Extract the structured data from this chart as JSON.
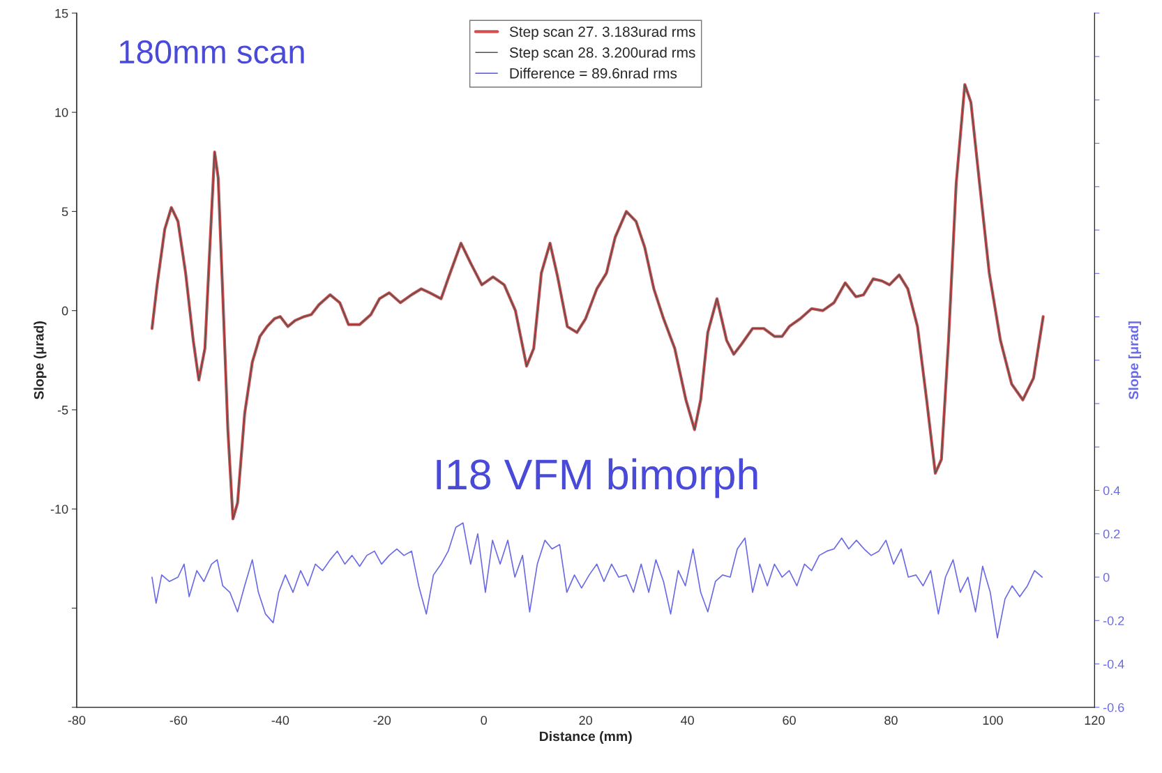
{
  "chart_data": {
    "type": "line",
    "xlabel": "Distance (mm)",
    "ylabel": "Slope (μrad)",
    "y2label": "Slope [μrad]",
    "annotations": [
      "180mm scan",
      "I18 VFM bimorph"
    ],
    "xlim": [
      -80,
      120
    ],
    "xticks": [
      -80,
      -60,
      -40,
      -20,
      0,
      20,
      40,
      60,
      80,
      100,
      120
    ],
    "ylim": [
      -20,
      15
    ],
    "yticks": [
      {
        "value": -20,
        "label": null
      },
      {
        "value": -15,
        "label": null
      },
      -10,
      -5,
      0,
      5,
      10,
      15
    ],
    "y2lim": [
      -0.6,
      2.6
    ],
    "y2ticks": [
      -0.6,
      -0.4,
      -0.2,
      0,
      0.2,
      0.4,
      {
        "value": 0.6,
        "label": null
      },
      {
        "value": 0.8,
        "label": null
      },
      {
        "value": 1.0,
        "label": null
      },
      {
        "value": 1.2,
        "label": null
      },
      {
        "value": 1.4,
        "label": null
      },
      {
        "value": 1.6,
        "label": null
      },
      {
        "value": 1.8,
        "label": null
      },
      {
        "value": 2.0,
        "label": null
      },
      {
        "value": 2.2,
        "label": null
      },
      {
        "value": 2.4,
        "label": null
      },
      {
        "value": 2.6,
        "label": null
      }
    ],
    "legend": "top",
    "grid": false,
    "series": [
      {
        "name": "Step scan 27. 3.183urad rms",
        "color": "#d05050",
        "x": [
          -65.2,
          -64.2,
          -62.7,
          -61.4,
          -60.1,
          -58.6,
          -57.1,
          -56.0,
          -54.8,
          -53.8,
          -52.9,
          -52.2,
          -51.3,
          -50.3,
          -49.3,
          -48.4,
          -47.0,
          -45.5,
          -44.0,
          -42.6,
          -41.1,
          -40.0,
          -38.5,
          -37.1,
          -35.3,
          -33.9,
          -32.4,
          -30.2,
          -28.3,
          -26.6,
          -24.4,
          -22.2,
          -20.5,
          -18.6,
          -16.4,
          -14.2,
          -12.3,
          -10.6,
          -8.4,
          -6.9,
          -4.5,
          -2.6,
          -0.4,
          1.8,
          4.0,
          6.2,
          8.4,
          9.8,
          11.3,
          13.0,
          14.5,
          16.4,
          18.3,
          20.0,
          22.2,
          24.1,
          25.8,
          28.0,
          29.9,
          31.6,
          33.4,
          35.3,
          37.5,
          39.7,
          41.4,
          42.6,
          44.0,
          45.8,
          47.7,
          49.1,
          50.6,
          52.8,
          55.0,
          57.1,
          58.6,
          60.0,
          62.2,
          64.4,
          66.6,
          68.8,
          71.0,
          73.1,
          74.6,
          76.5,
          78.2,
          79.7,
          81.6,
          83.3,
          85.2,
          87.0,
          88.7,
          89.9,
          91.3,
          92.8,
          94.5,
          95.7,
          97.4,
          99.3,
          101.5,
          103.7,
          105.9,
          108.0,
          109.9
        ],
        "values": [
          -0.9,
          1.3,
          4.1,
          5.2,
          4.5,
          1.9,
          -1.5,
          -3.5,
          -1.9,
          3.4,
          8.0,
          6.7,
          0.8,
          -6.0,
          -10.5,
          -9.7,
          -5.2,
          -2.6,
          -1.3,
          -0.8,
          -0.4,
          -0.3,
          -0.8,
          -0.5,
          -0.3,
          -0.2,
          0.3,
          0.8,
          0.4,
          -0.7,
          -0.7,
          -0.2,
          0.6,
          0.9,
          0.4,
          0.8,
          1.1,
          0.9,
          0.6,
          1.7,
          3.4,
          2.4,
          1.3,
          1.7,
          1.3,
          0.0,
          -2.8,
          -1.9,
          1.9,
          3.4,
          1.7,
          -0.8,
          -1.1,
          -0.4,
          1.1,
          1.9,
          3.7,
          5.0,
          4.5,
          3.2,
          1.1,
          -0.4,
          -1.9,
          -4.5,
          -6.0,
          -4.5,
          -1.1,
          0.6,
          -1.5,
          -2.2,
          -1.7,
          -0.9,
          -0.9,
          -1.3,
          -1.3,
          -0.8,
          -0.4,
          0.1,
          0.0,
          0.4,
          1.4,
          0.7,
          0.8,
          1.6,
          1.5,
          1.3,
          1.8,
          1.1,
          -0.8,
          -4.5,
          -8.2,
          -7.5,
          -1.5,
          6.4,
          11.4,
          10.5,
          6.4,
          1.9,
          -1.5,
          -3.7,
          -4.5,
          -3.4,
          -0.3
        ]
      },
      {
        "name": "Step scan 28. 3.200urad rms",
        "color": "#505050",
        "x": [
          -65.2,
          -64.2,
          -62.7,
          -61.4,
          -60.1,
          -58.6,
          -57.1,
          -56.0,
          -54.8,
          -53.8,
          -52.9,
          -52.2,
          -51.3,
          -50.3,
          -49.3,
          -48.4,
          -47.0,
          -45.5,
          -44.0,
          -42.6,
          -41.1,
          -40.0,
          -38.5,
          -37.1,
          -35.3,
          -33.9,
          -32.4,
          -30.2,
          -28.3,
          -26.6,
          -24.4,
          -22.2,
          -20.5,
          -18.6,
          -16.4,
          -14.2,
          -12.3,
          -10.6,
          -8.4,
          -6.9,
          -4.5,
          -2.6,
          -0.4,
          1.8,
          4.0,
          6.2,
          8.4,
          9.8,
          11.3,
          13.0,
          14.5,
          16.4,
          18.3,
          20.0,
          22.2,
          24.1,
          25.8,
          28.0,
          29.9,
          31.6,
          33.4,
          35.3,
          37.5,
          39.7,
          41.4,
          42.6,
          44.0,
          45.8,
          47.7,
          49.1,
          50.6,
          52.8,
          55.0,
          57.1,
          58.6,
          60.0,
          62.2,
          64.4,
          66.6,
          68.8,
          71.0,
          73.1,
          74.6,
          76.5,
          78.2,
          79.7,
          81.6,
          83.3,
          85.2,
          87.0,
          88.7,
          89.9,
          91.3,
          92.8,
          94.5,
          95.7,
          97.4,
          99.3,
          101.5,
          103.7,
          105.9,
          108.0,
          109.9
        ],
        "values": [
          -0.9,
          1.3,
          4.1,
          5.2,
          4.5,
          1.9,
          -1.5,
          -3.5,
          -1.9,
          3.4,
          8.0,
          6.7,
          0.8,
          -6.0,
          -10.5,
          -9.7,
          -5.2,
          -2.6,
          -1.3,
          -0.8,
          -0.4,
          -0.3,
          -0.8,
          -0.5,
          -0.3,
          -0.2,
          0.3,
          0.8,
          0.4,
          -0.7,
          -0.7,
          -0.2,
          0.6,
          0.9,
          0.4,
          0.8,
          1.1,
          0.9,
          0.6,
          1.7,
          3.4,
          2.4,
          1.3,
          1.7,
          1.3,
          0.0,
          -2.8,
          -1.9,
          1.9,
          3.4,
          1.7,
          -0.8,
          -1.1,
          -0.4,
          1.1,
          1.9,
          3.7,
          5.0,
          4.5,
          3.2,
          1.1,
          -0.4,
          -1.9,
          -4.5,
          -6.0,
          -4.5,
          -1.1,
          0.6,
          -1.5,
          -2.2,
          -1.7,
          -0.9,
          -0.9,
          -1.3,
          -1.3,
          -0.8,
          -0.4,
          0.1,
          0.0,
          0.4,
          1.4,
          0.7,
          0.8,
          1.6,
          1.5,
          1.3,
          1.8,
          1.1,
          -0.8,
          -4.5,
          -8.2,
          -7.5,
          -1.5,
          6.4,
          11.4,
          10.5,
          6.4,
          1.9,
          -1.5,
          -3.7,
          -4.5,
          -3.4,
          -0.3
        ]
      },
      {
        "name": "Difference = 89.6nrad rms",
        "color": "#6a6ae6",
        "axis": "y2",
        "x": [
          -65.2,
          -64.4,
          -63.3,
          -61.8,
          -60.1,
          -58.9,
          -57.9,
          -56.4,
          -55.0,
          -53.5,
          -52.4,
          -51.3,
          -49.9,
          -48.4,
          -47.0,
          -45.5,
          -44.3,
          -42.9,
          -41.4,
          -40.3,
          -39.0,
          -37.5,
          -36.0,
          -34.6,
          -33.1,
          -31.7,
          -30.2,
          -28.8,
          -27.3,
          -25.9,
          -24.4,
          -23.0,
          -21.5,
          -20.1,
          -18.6,
          -17.1,
          -15.7,
          -14.2,
          -12.8,
          -11.3,
          -9.9,
          -8.4,
          -7.0,
          -5.5,
          -4.1,
          -2.6,
          -1.2,
          0.3,
          1.7,
          3.2,
          4.7,
          6.1,
          7.6,
          9.0,
          10.5,
          12.0,
          13.4,
          14.9,
          16.3,
          17.8,
          19.2,
          20.7,
          22.2,
          23.6,
          25.1,
          26.5,
          28.0,
          29.4,
          30.9,
          32.4,
          33.8,
          35.3,
          36.7,
          38.2,
          39.6,
          41.1,
          42.6,
          44.0,
          45.5,
          46.9,
          48.4,
          49.8,
          51.3,
          52.8,
          54.2,
          55.7,
          57.1,
          58.6,
          60.0,
          61.5,
          63.0,
          64.4,
          65.9,
          67.4,
          68.8,
          70.3,
          71.7,
          73.2,
          74.7,
          76.1,
          77.6,
          79.0,
          80.5,
          82.0,
          83.4,
          84.9,
          86.3,
          87.8,
          89.3,
          90.7,
          92.2,
          93.6,
          95.1,
          96.6,
          98.0,
          99.5,
          100.9,
          102.4,
          103.8,
          105.3,
          106.8,
          108.2,
          109.7
        ],
        "values": [
          0,
          -0.12,
          0.01,
          -0.02,
          0,
          0.06,
          -0.09,
          0.03,
          -0.02,
          0.06,
          0.08,
          -0.04,
          -0.07,
          -0.16,
          -0.04,
          0.08,
          -0.07,
          -0.17,
          -0.21,
          -0.07,
          0.01,
          -0.07,
          0.03,
          -0.04,
          0.06,
          0.03,
          0.08,
          0.12,
          0.06,
          0.1,
          0.05,
          0.1,
          0.12,
          0.06,
          0.1,
          0.13,
          0.1,
          0.12,
          -0.04,
          -0.17,
          0.01,
          0.06,
          0.12,
          0.23,
          0.25,
          0.06,
          0.2,
          -0.07,
          0.17,
          0.06,
          0.17,
          0,
          0.1,
          -0.16,
          0.06,
          0.17,
          0.13,
          0.15,
          -0.07,
          0.01,
          -0.05,
          0.01,
          0.06,
          -0.02,
          0.06,
          0,
          0.01,
          -0.07,
          0.06,
          -0.07,
          0.08,
          -0.02,
          -0.17,
          0.03,
          -0.04,
          0.13,
          -0.07,
          -0.16,
          -0.02,
          0.01,
          0,
          0.13,
          0.18,
          -0.07,
          0.06,
          -0.04,
          0.06,
          0,
          0.03,
          -0.04,
          0.06,
          0.03,
          0.1,
          0.12,
          0.13,
          0.18,
          0.13,
          0.17,
          0.13,
          0.1,
          0.12,
          0.17,
          0.06,
          0.13,
          0,
          0.01,
          -0.04,
          0.03,
          -0.17,
          0,
          0.08,
          -0.07,
          0,
          -0.16,
          0.05,
          -0.07,
          -0.28,
          -0.1,
          -0.04,
          -0.09,
          -0.04,
          0.03,
          0
        ]
      }
    ]
  }
}
